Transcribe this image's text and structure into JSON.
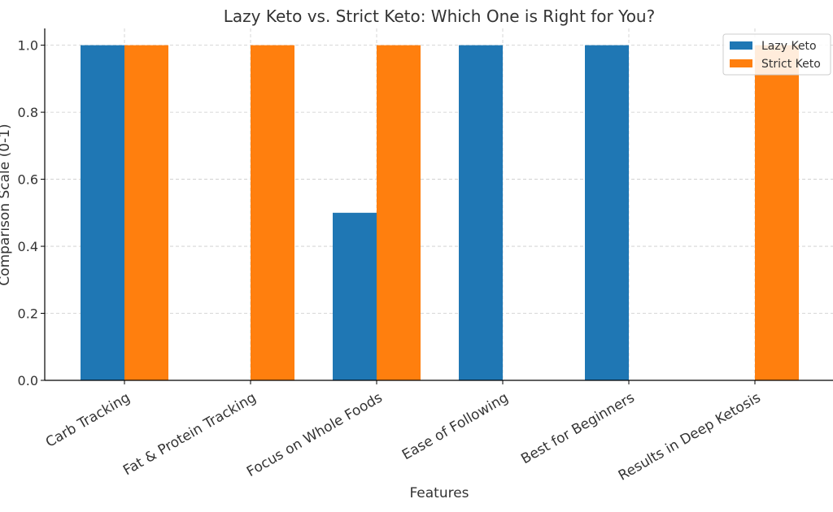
{
  "chart_data": {
    "type": "bar",
    "title": "Lazy Keto vs. Strict Keto: Which One is Right for You?",
    "xlabel": "Features",
    "ylabel": "Comparison Scale (0-1)",
    "categories": [
      "Carb Tracking",
      "Fat & Protein Tracking",
      "Focus on Whole Foods",
      "Ease of Following",
      "Best for Beginners",
      "Results in Deep Ketosis"
    ],
    "series": [
      {
        "name": "Lazy Keto",
        "color": "#1f77b4",
        "values": [
          1.0,
          0.0,
          0.5,
          1.0,
          1.0,
          0.0
        ]
      },
      {
        "name": "Strict Keto",
        "color": "#ff7f0e",
        "values": [
          1.0,
          1.0,
          1.0,
          0.0,
          0.0,
          1.0
        ]
      }
    ],
    "ylim": [
      0,
      1.05
    ],
    "yticks": [
      "0.0",
      "0.2",
      "0.4",
      "0.6",
      "0.8",
      "1.0"
    ],
    "grid": true,
    "legend_position": "top-right"
  }
}
